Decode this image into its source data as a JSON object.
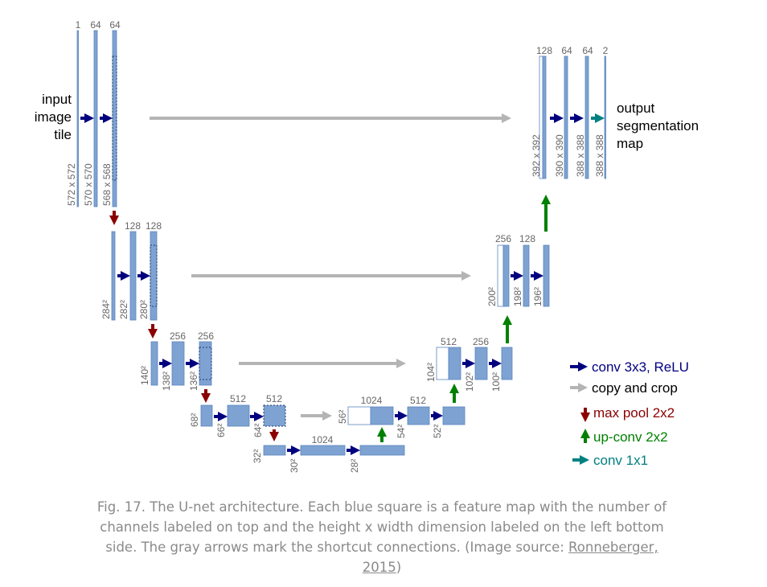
{
  "diagram": {
    "input_label": [
      "input",
      "image",
      "tile"
    ],
    "output_label": [
      "output",
      "segmentation",
      "map"
    ],
    "channels": {
      "l1": [
        "1",
        "64",
        "64"
      ],
      "l2": [
        "128",
        "128"
      ],
      "l3": [
        "256",
        "256"
      ],
      "l4": [
        "512",
        "512"
      ],
      "l5": [
        "1024"
      ],
      "r4": [
        "1024",
        "512"
      ],
      "r3": [
        "512",
        "256"
      ],
      "r2": [
        "256",
        "128"
      ],
      "r1": [
        "128",
        "64",
        "64",
        "2"
      ]
    },
    "dims": {
      "l1": [
        "572 x 572",
        "570 x 570",
        "568 x 568"
      ],
      "l2": [
        "284²",
        "282²",
        "280²"
      ],
      "l3": [
        "140²",
        "138²",
        "136²"
      ],
      "l4": [
        "68²",
        "66²",
        "64²"
      ],
      "l5": [
        "32²",
        "30²",
        "28²"
      ],
      "r4": [
        "56²",
        "54²",
        "52²"
      ],
      "r3": [
        "104²",
        "102²",
        "100²"
      ],
      "r2": [
        "200²",
        "198²",
        "196²"
      ],
      "r1": [
        "392 x 392",
        "390 x 390",
        "388 x 388",
        "388 x 388"
      ]
    }
  },
  "legend": {
    "conv": "conv 3x3, ReLU",
    "copy": "copy and crop",
    "pool": "max pool 2x2",
    "upconv": "up-conv 2x2",
    "conv1x1": "conv 1x1"
  },
  "colors": {
    "box": "#7ea3d2",
    "box_border": "#5a84bd",
    "conv": "#00007f",
    "copy": "#b4b4b4",
    "pool": "#8b0000",
    "upconv": "#008000",
    "conv1x1": "#008080",
    "label": "#666666"
  },
  "caption": {
    "text": "Fig. 17. The U-net architecture. Each blue square is a feature map with the number of channels labeled on top and the height x width dimension labeled on the left bottom side. The gray arrows mark the shortcut connections. (Image source: ",
    "link": "Ronneberger, 2015",
    "end": ")"
  }
}
